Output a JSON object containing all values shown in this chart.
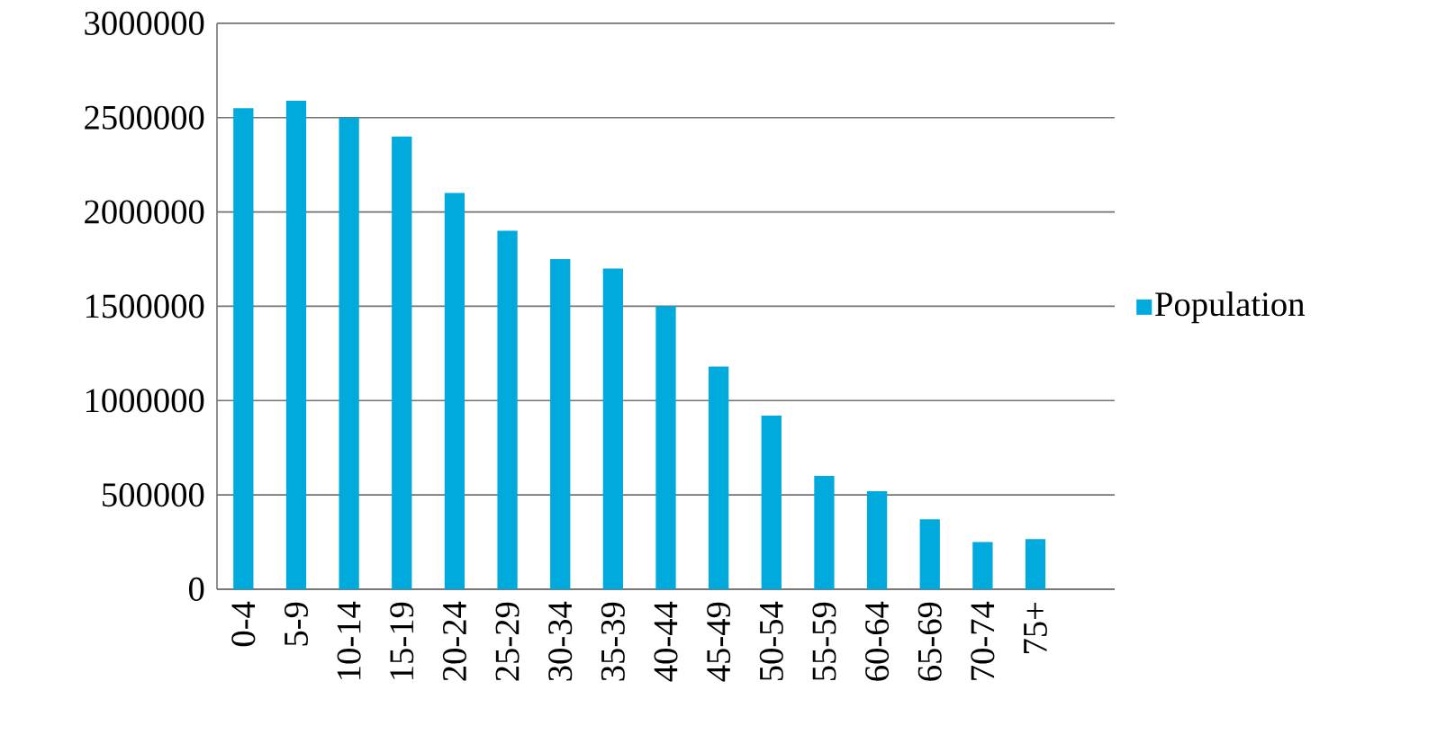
{
  "chart_data": {
    "type": "bar",
    "categories": [
      "0-4",
      "5-9",
      "10-14",
      "15-19",
      "20-24",
      "25-29",
      "30-34",
      "35-39",
      "40-44",
      "45-49",
      "50-54",
      "55-59",
      "60-64",
      "65-69",
      "70-74",
      "75+",
      null
    ],
    "series": [
      {
        "name": "Population",
        "color": "#00aadc",
        "values": [
          2550000,
          2590000,
          2500000,
          2400000,
          2100000,
          1900000,
          1750000,
          1700000,
          1500000,
          1180000,
          920000,
          600000,
          520000,
          370000,
          250000,
          265000,
          null
        ]
      }
    ],
    "ylim": [
      0,
      3000000
    ],
    "yticks": [
      0,
      500000,
      1000000,
      1500000,
      2000000,
      2500000,
      3000000
    ],
    "grid": "y",
    "legend": "right"
  }
}
